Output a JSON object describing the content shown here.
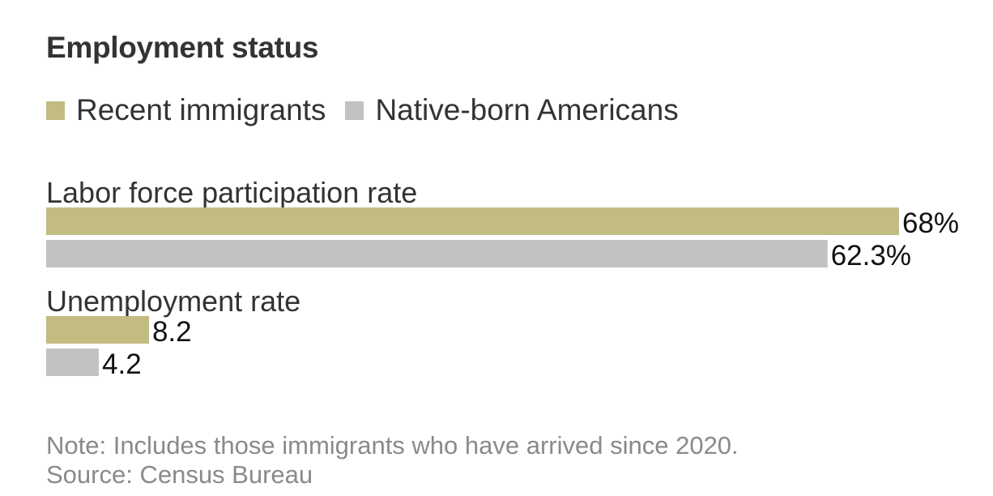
{
  "chart_data": {
    "type": "bar",
    "title": "Employment status",
    "series": [
      {
        "name": "Recent immigrants",
        "color": "#c2bb82"
      },
      {
        "name": "Native-born Americans",
        "color": "#c2c2c2"
      }
    ],
    "groups": [
      {
        "label": "Labor force participation rate",
        "values": [
          68,
          62.3
        ],
        "value_labels": [
          "68%",
          "62.3%"
        ]
      },
      {
        "label": "Unemployment rate",
        "values": [
          8.2,
          4.2
        ],
        "value_labels": [
          "8.2",
          "4.2"
        ]
      }
    ],
    "xlim": [
      0,
      68
    ],
    "grid": false,
    "legend_position": "top-left"
  },
  "footer": {
    "note": "Note: Includes those immigrants who have arrived since 2020.",
    "source": "Source: Census Bureau"
  }
}
